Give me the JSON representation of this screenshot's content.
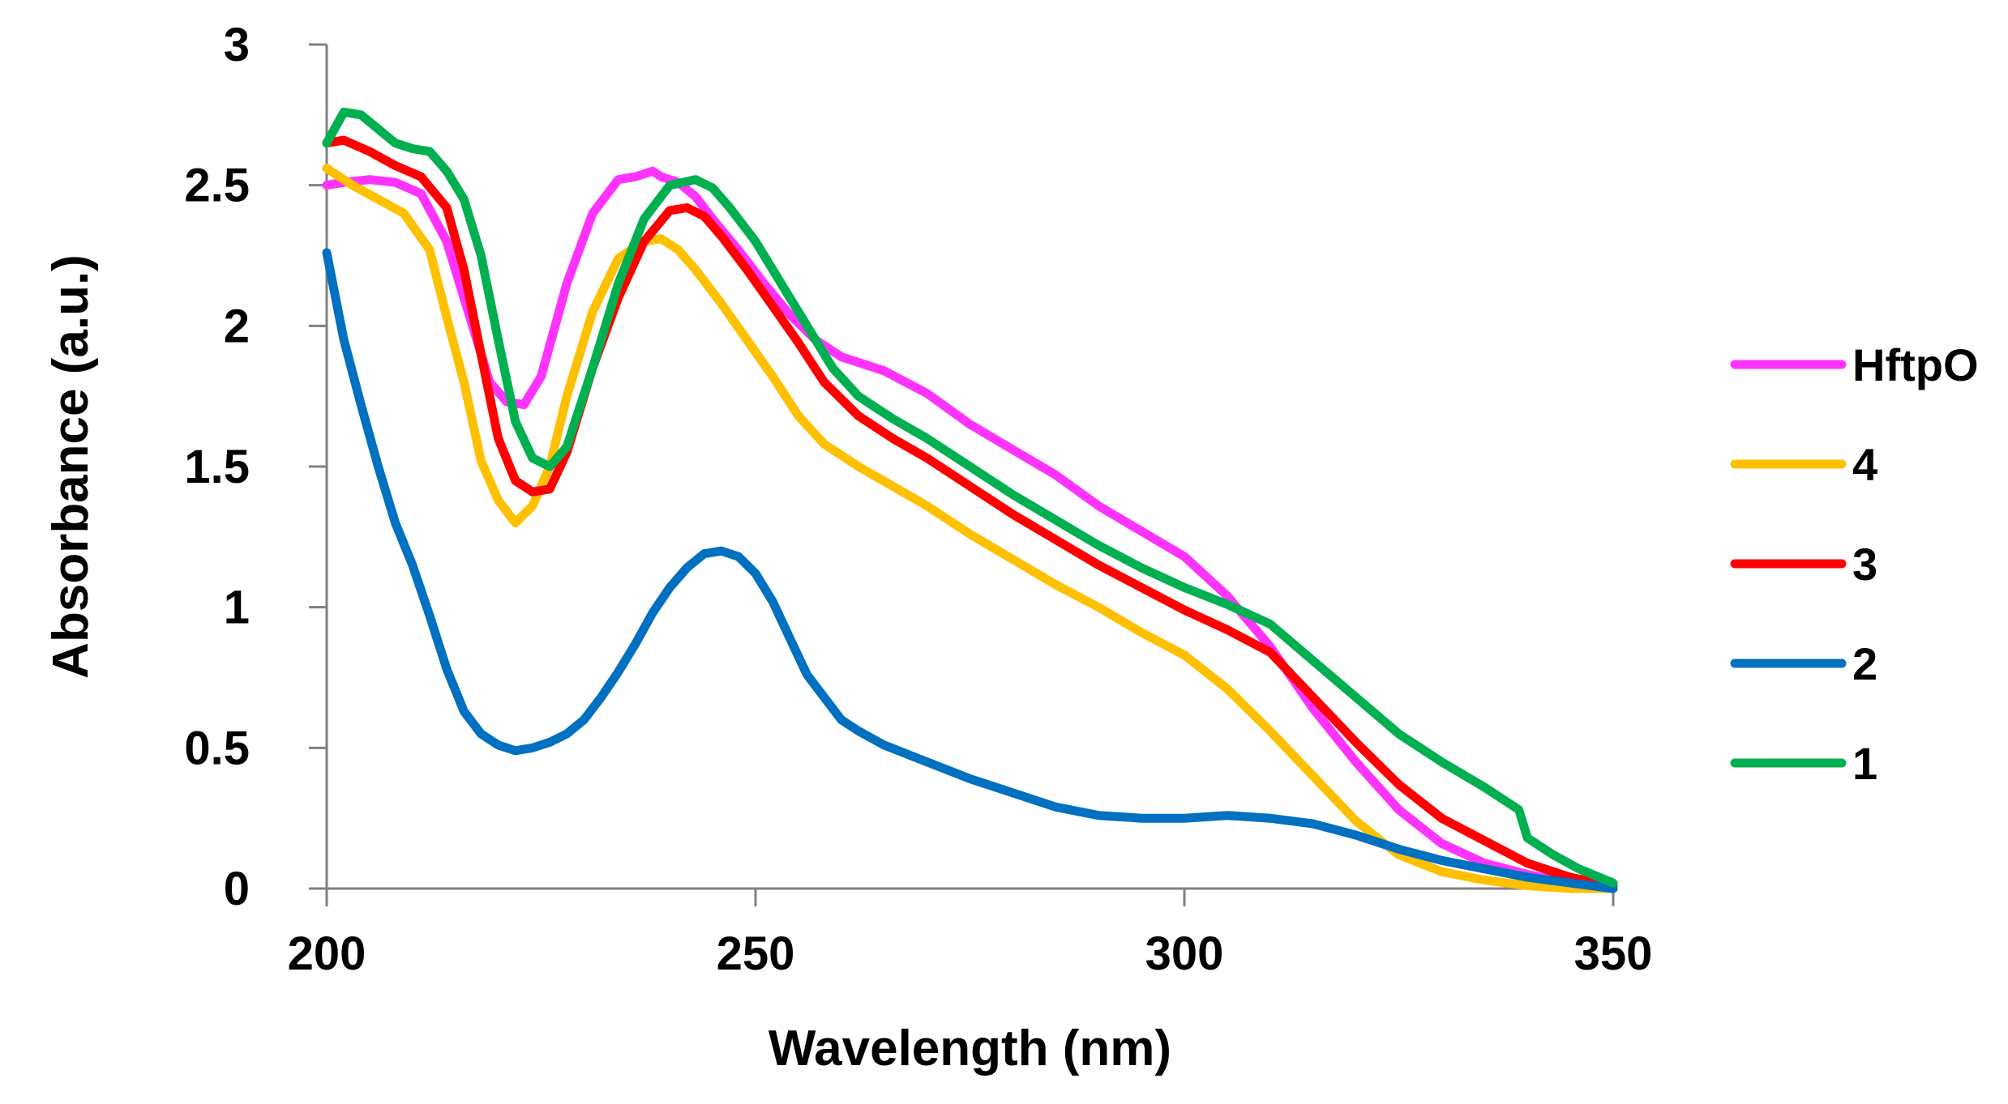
{
  "chart_data": {
    "type": "line",
    "title": "",
    "xlabel": "Wavelength (nm)",
    "ylabel": "Absorbance (a.u.)",
    "xlim": [
      200,
      350
    ],
    "ylim": [
      0,
      3
    ],
    "xticks": [
      200,
      250,
      300,
      350
    ],
    "yticks": [
      0,
      0.5,
      1,
      1.5,
      2,
      2.5,
      3
    ],
    "ytick_labels": [
      "0",
      "0.5",
      "1",
      "1.5",
      "2",
      "2.5",
      "3"
    ],
    "xtick_labels": [
      "200",
      "250",
      "300",
      "350"
    ],
    "grid": false,
    "legend_position": "right",
    "series": [
      {
        "name": "HftpO",
        "color": "#ff33ff",
        "x": [
          200,
          202,
          205,
          208,
          211,
          214,
          217,
          219,
          221,
          223,
          225,
          228,
          231,
          234,
          236,
          238,
          239,
          241,
          243,
          245,
          248,
          251,
          254,
          257,
          260,
          265,
          270,
          275,
          280,
          285,
          290,
          295,
          300,
          305,
          310,
          315,
          320,
          325,
          330,
          335,
          340,
          345,
          350
        ],
        "y": [
          2.5,
          2.51,
          2.52,
          2.51,
          2.47,
          2.3,
          2.0,
          1.8,
          1.73,
          1.72,
          1.82,
          2.15,
          2.4,
          2.52,
          2.53,
          2.55,
          2.53,
          2.51,
          2.46,
          2.38,
          2.27,
          2.15,
          2.04,
          1.95,
          1.89,
          1.84,
          1.76,
          1.65,
          1.56,
          1.47,
          1.36,
          1.27,
          1.18,
          1.04,
          0.86,
          0.64,
          0.45,
          0.28,
          0.16,
          0.09,
          0.05,
          0.02,
          0.0
        ]
      },
      {
        "name": "4",
        "color": "#ffc000",
        "x": [
          200,
          203,
          206,
          209,
          212,
          214,
          216,
          218,
          220,
          222,
          224,
          226,
          228,
          231,
          234,
          237,
          239,
          241,
          243,
          246,
          249,
          252,
          255,
          258,
          262,
          266,
          270,
          275,
          280,
          285,
          290,
          295,
          300,
          305,
          310,
          315,
          320,
          325,
          330,
          335,
          340,
          345,
          350
        ],
        "y": [
          2.56,
          2.5,
          2.45,
          2.4,
          2.27,
          2.03,
          1.8,
          1.52,
          1.38,
          1.3,
          1.36,
          1.5,
          1.75,
          2.05,
          2.24,
          2.3,
          2.31,
          2.27,
          2.2,
          2.08,
          1.95,
          1.82,
          1.68,
          1.58,
          1.5,
          1.43,
          1.36,
          1.26,
          1.17,
          1.08,
          1.0,
          0.91,
          0.83,
          0.71,
          0.56,
          0.4,
          0.24,
          0.12,
          0.06,
          0.03,
          0.01,
          0.0,
          0.0
        ]
      },
      {
        "name": "3",
        "color": "#ff0000",
        "x": [
          200,
          202,
          205,
          208,
          211,
          214,
          216,
          218,
          220,
          222,
          224,
          226,
          228,
          231,
          234,
          237,
          240,
          242,
          244,
          246,
          249,
          252,
          255,
          258,
          262,
          266,
          270,
          275,
          280,
          285,
          290,
          295,
          300,
          305,
          310,
          315,
          320,
          325,
          330,
          335,
          340,
          345,
          350
        ],
        "y": [
          2.65,
          2.66,
          2.62,
          2.57,
          2.53,
          2.42,
          2.2,
          1.9,
          1.6,
          1.45,
          1.41,
          1.42,
          1.55,
          1.85,
          2.1,
          2.3,
          2.41,
          2.42,
          2.39,
          2.32,
          2.2,
          2.07,
          1.94,
          1.8,
          1.68,
          1.6,
          1.53,
          1.43,
          1.33,
          1.24,
          1.15,
          1.07,
          0.99,
          0.92,
          0.84,
          0.68,
          0.52,
          0.37,
          0.25,
          0.17,
          0.09,
          0.04,
          0.01
        ]
      },
      {
        "name": "2",
        "color": "#0070c0",
        "x": [
          200,
          202,
          204,
          206,
          208,
          210,
          212,
          214,
          216,
          218,
          220,
          222,
          224,
          226,
          228,
          230,
          232,
          234,
          236,
          238,
          240,
          242,
          244,
          246,
          248,
          250,
          252,
          254,
          256,
          258,
          260,
          262,
          265,
          270,
          275,
          280,
          285,
          290,
          295,
          300,
          305,
          310,
          315,
          320,
          325,
          330,
          335,
          340,
          345,
          350
        ],
        "y": [
          2.26,
          1.95,
          1.72,
          1.5,
          1.3,
          1.15,
          0.97,
          0.78,
          0.63,
          0.55,
          0.51,
          0.49,
          0.5,
          0.52,
          0.55,
          0.6,
          0.68,
          0.77,
          0.87,
          0.98,
          1.07,
          1.14,
          1.19,
          1.2,
          1.18,
          1.12,
          1.02,
          0.89,
          0.76,
          0.68,
          0.6,
          0.56,
          0.51,
          0.45,
          0.39,
          0.34,
          0.29,
          0.26,
          0.25,
          0.25,
          0.26,
          0.25,
          0.23,
          0.19,
          0.14,
          0.1,
          0.07,
          0.04,
          0.02,
          0.0
        ]
      },
      {
        "name": "1",
        "color": "#00b050",
        "x": [
          200,
          202,
          204,
          206,
          208,
          210,
          212,
          214,
          216,
          218,
          220,
          222,
          224,
          226,
          228,
          231,
          234,
          237,
          240,
          243,
          245,
          247,
          250,
          253,
          256,
          259,
          262,
          266,
          270,
          275,
          280,
          285,
          290,
          295,
          300,
          305,
          310,
          315,
          320,
          325,
          330,
          335,
          339,
          340,
          343,
          346,
          350
        ],
        "y": [
          2.65,
          2.76,
          2.75,
          2.7,
          2.65,
          2.63,
          2.62,
          2.55,
          2.45,
          2.25,
          1.95,
          1.66,
          1.53,
          1.5,
          1.57,
          1.85,
          2.15,
          2.38,
          2.5,
          2.52,
          2.49,
          2.42,
          2.3,
          2.15,
          2.0,
          1.85,
          1.75,
          1.67,
          1.6,
          1.5,
          1.4,
          1.31,
          1.22,
          1.14,
          1.07,
          1.01,
          0.94,
          0.81,
          0.68,
          0.55,
          0.45,
          0.36,
          0.28,
          0.18,
          0.12,
          0.07,
          0.02
        ]
      }
    ]
  }
}
